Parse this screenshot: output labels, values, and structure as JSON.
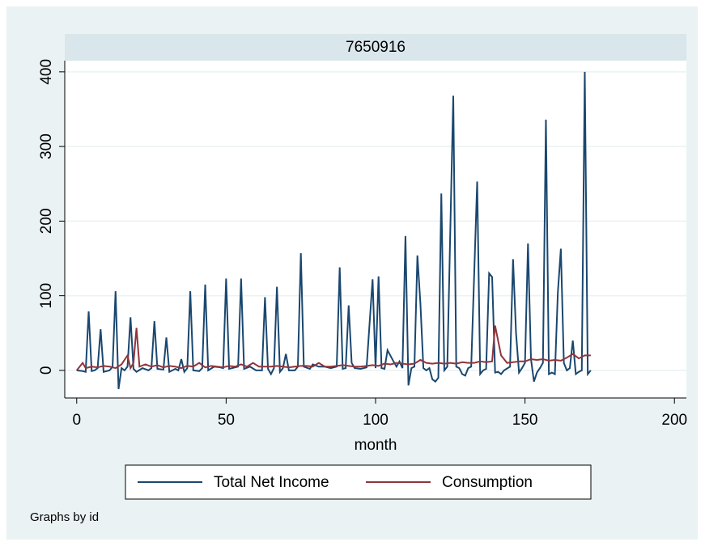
{
  "chart_data": {
    "type": "line",
    "title": "7650916",
    "xlabel": "month",
    "note": "Graphs by id",
    "xlim": [
      -4,
      204
    ],
    "ylim": [
      -37,
      415
    ],
    "xticks": [
      0,
      50,
      100,
      150,
      200
    ],
    "yticks": [
      0,
      100,
      200,
      300,
      400
    ],
    "grid": true,
    "legend": "bottom",
    "series": [
      {
        "name": "Total Net Income",
        "color": "#1a476f",
        "x": [
          0,
          2,
          3,
          4,
          5,
          6,
          7,
          8,
          9,
          11,
          12,
          13,
          14,
          15,
          16,
          17,
          18,
          19,
          20,
          22,
          24,
          25,
          26,
          27,
          29,
          30,
          31,
          33,
          34,
          35,
          36,
          37,
          38,
          39,
          41,
          42,
          43,
          44,
          46,
          48,
          49,
          50,
          51,
          53,
          54,
          55,
          56,
          58,
          60,
          62,
          63,
          64,
          65,
          66,
          67,
          68,
          69,
          70,
          71,
          73,
          74,
          75,
          76,
          78,
          79,
          81,
          83,
          85,
          87,
          88,
          89,
          90,
          91,
          92,
          93,
          95,
          97,
          99,
          100,
          101,
          102,
          103,
          104,
          106,
          107,
          108,
          109,
          110,
          111,
          112,
          113,
          114,
          115,
          116,
          117,
          118,
          119,
          120,
          121,
          122,
          123,
          124,
          126,
          127,
          128,
          129,
          130,
          131,
          132,
          134,
          135,
          136,
          137,
          138,
          139,
          140,
          141,
          142,
          143,
          145,
          146,
          147,
          148,
          149,
          150,
          151,
          152,
          153,
          154,
          155,
          156,
          157,
          158,
          159,
          160,
          161,
          162,
          163,
          164,
          165,
          166,
          167,
          168,
          169,
          170,
          171,
          172
        ],
        "values": [
          0,
          -1,
          -2,
          79,
          -1,
          0,
          3,
          55,
          -2,
          0,
          5,
          106,
          -25,
          3,
          0,
          5,
          71,
          2,
          -2,
          3,
          0,
          3,
          66,
          2,
          1,
          44,
          -2,
          2,
          0,
          15,
          -2,
          3,
          106,
          0,
          -1,
          3,
          115,
          0,
          5,
          4,
          3,
          123,
          2,
          4,
          5,
          123,
          2,
          5,
          0,
          0,
          98,
          2,
          -5,
          3,
          112,
          -2,
          3,
          22,
          0,
          0,
          5,
          157,
          5,
          2,
          8,
          5,
          5,
          3,
          5,
          138,
          2,
          3,
          87,
          10,
          3,
          2,
          4,
          122,
          3,
          126,
          3,
          2,
          27,
          12,
          5,
          12,
          3,
          180,
          -20,
          3,
          5,
          154,
          90,
          3,
          0,
          3,
          -12,
          -15,
          -10,
          237,
          0,
          5,
          368,
          5,
          3,
          -5,
          -7,
          3,
          5,
          253,
          -5,
          0,
          2,
          130,
          125,
          -3,
          -2,
          -5,
          0,
          5,
          149,
          50,
          -3,
          3,
          10,
          170,
          15,
          -15,
          -3,
          3,
          10,
          336,
          -5,
          -3,
          -5,
          105,
          163,
          10,
          0,
          3,
          40,
          -5,
          -2,
          0,
          400,
          -5,
          0
        ]
      },
      {
        "name": "Consumption",
        "color": "#90353b",
        "x": [
          0,
          2,
          3,
          5,
          7,
          9,
          11,
          13,
          15,
          17,
          18,
          19,
          20,
          21,
          23,
          25,
          27,
          29,
          31,
          33,
          35,
          37,
          39,
          41,
          43,
          45,
          47,
          49,
          51,
          53,
          55,
          57,
          59,
          61,
          63,
          65,
          67,
          69,
          71,
          73,
          75,
          77,
          79,
          81,
          83,
          85,
          87,
          89,
          91,
          93,
          95,
          97,
          99,
          101,
          103,
          105,
          107,
          109,
          111,
          113,
          115,
          117,
          119,
          121,
          123,
          125,
          127,
          129,
          131,
          133,
          135,
          137,
          139,
          140,
          142,
          144,
          146,
          148,
          150,
          152,
          154,
          156,
          158,
          160,
          162,
          164,
          166,
          168,
          170,
          172
        ],
        "values": [
          0,
          10,
          3,
          5,
          4,
          6,
          5,
          3,
          8,
          20,
          3,
          10,
          57,
          5,
          8,
          5,
          7,
          4,
          6,
          5,
          3,
          6,
          5,
          10,
          4,
          6,
          5,
          4,
          6,
          5,
          8,
          5,
          10,
          5,
          5,
          5,
          6,
          5,
          4,
          5,
          6,
          6,
          5,
          10,
          5,
          5,
          6,
          7,
          6,
          5,
          5,
          6,
          7,
          6,
          9,
          8,
          10,
          9,
          8,
          9,
          14,
          10,
          9,
          10,
          9,
          10,
          9,
          11,
          10,
          10,
          12,
          11,
          12,
          60,
          20,
          10,
          11,
          12,
          12,
          15,
          14,
          15,
          13,
          14,
          13,
          17,
          22,
          16,
          20,
          20
        ]
      }
    ]
  }
}
